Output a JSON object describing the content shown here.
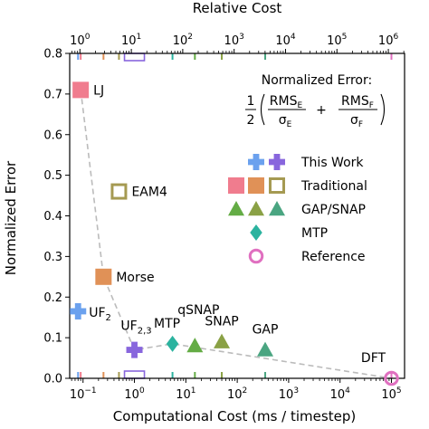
{
  "chart_data": {
    "type": "scatter",
    "xlabel": "Computational Cost (ms / timestep)",
    "ylabel": "Normalized Error",
    "top_xlabel": "Relative Cost",
    "xscale": "log",
    "xlim": [
      0.055,
      180000
    ],
    "ylim": [
      0,
      0.8
    ],
    "relative_cost_reference": 0.087,
    "x_ticks": [
      {
        "value": 0.1,
        "base": "10",
        "exp": "−1"
      },
      {
        "value": 1,
        "base": "10",
        "exp": "0"
      },
      {
        "value": 10,
        "base": "10",
        "exp": "1"
      },
      {
        "value": 100,
        "base": "10",
        "exp": "2"
      },
      {
        "value": 1000,
        "base": "10",
        "exp": "3"
      },
      {
        "value": 10000,
        "base": "10",
        "exp": "4"
      },
      {
        "value": 100000,
        "base": "10",
        "exp": "5"
      }
    ],
    "top_ticks": [
      {
        "value": 1,
        "base": "10",
        "exp": "0"
      },
      {
        "value": 10,
        "base": "10",
        "exp": "1"
      },
      {
        "value": 100,
        "base": "10",
        "exp": "2"
      },
      {
        "value": 1000,
        "base": "10",
        "exp": "3"
      },
      {
        "value": 10000,
        "base": "10",
        "exp": "4"
      },
      {
        "value": 100000,
        "base": "10",
        "exp": "5"
      },
      {
        "value": 1000000,
        "base": "10",
        "exp": "6"
      }
    ],
    "y_ticks": [
      "0.0",
      "0.1",
      "0.2",
      "0.3",
      "0.4",
      "0.5",
      "0.6",
      "0.7",
      "0.8"
    ],
    "pareto_front": [
      {
        "x": 0.09,
        "y": 0.71
      },
      {
        "x": 0.25,
        "y": 0.25
      },
      {
        "x": 1.0,
        "y": 0.07
      },
      {
        "x": 5.5,
        "y": 0.085
      },
      {
        "x": 100000,
        "y": 0.0
      }
    ],
    "points": [
      {
        "label": "LJ",
        "sub": "",
        "x": 0.09,
        "y": 0.71,
        "marker": "square",
        "color": "#f07c8e",
        "filled": true
      },
      {
        "label": "EAM4",
        "sub": "",
        "x": 0.5,
        "y": 0.46,
        "marker": "square",
        "color": "#a59a52",
        "filled": false
      },
      {
        "label": "Morse",
        "sub": "",
        "x": 0.25,
        "y": 0.25,
        "marker": "square",
        "color": "#e09157",
        "filled": true
      },
      {
        "label": "UF",
        "sub": "2",
        "x": 0.08,
        "y": 0.165,
        "marker": "plus",
        "color": "#6ba1ee",
        "filled": true
      },
      {
        "label": "UF",
        "sub": "2,3",
        "x": 1.0,
        "y": 0.07,
        "marker": "plus",
        "color": "#8866dd",
        "filled": true
      },
      {
        "label": "MTP",
        "sub": "",
        "x": 5.5,
        "y": 0.085,
        "marker": "diamond",
        "color": "#2bb39f",
        "filled": true
      },
      {
        "label": "qSNAP",
        "sub": "",
        "x": 15,
        "y": 0.08,
        "marker": "triangle",
        "color": "#64ac45",
        "filled": true
      },
      {
        "label": "SNAP",
        "sub": "",
        "x": 50,
        "y": 0.09,
        "marker": "triangle",
        "color": "#8aa145",
        "filled": true
      },
      {
        "label": "GAP",
        "sub": "",
        "x": 350,
        "y": 0.07,
        "marker": "triangle",
        "color": "#4aa581",
        "filled": true
      },
      {
        "label": "DFT",
        "sub": "",
        "x": 100000,
        "y": 0.0,
        "marker": "circle",
        "color": "#e070c0",
        "filled": false
      }
    ],
    "rug_marks": [
      {
        "x": 0.08,
        "color": "#6ba1ee"
      },
      {
        "x": 0.09,
        "color": "#f07c8e"
      },
      {
        "x": 0.25,
        "color": "#e09157"
      },
      {
        "x": 0.5,
        "color": "#a59a52"
      },
      {
        "x": 5.5,
        "color": "#2bb39f"
      },
      {
        "x": 15,
        "color": "#64ac45"
      },
      {
        "x": 50,
        "color": "#8aa145"
      },
      {
        "x": 350,
        "color": "#4aa581"
      },
      {
        "x": 100000,
        "color": "#e070c0"
      }
    ],
    "rug_boxes": [
      {
        "x": 1.0,
        "color": "#8866dd"
      }
    ],
    "legend": {
      "placement": "right",
      "title": "Normalized Error:",
      "formula": {
        "one": "1",
        "two": "2",
        "rmse": "RMS",
        "rmse_sub": "E",
        "sigma_e": "σ",
        "sigma_e_sub": "E",
        "plus": "+",
        "rmsf": "RMS",
        "rmsf_sub": "F",
        "sigma_f": "σ",
        "sigma_f_sub": "F"
      },
      "entries": [
        {
          "label": "This Work",
          "markers": [
            {
              "shape": "plus",
              "color": "#6ba1ee"
            },
            {
              "shape": "plus",
              "color": "#8866dd"
            }
          ]
        },
        {
          "label": "Traditional",
          "markers": [
            {
              "shape": "square",
              "color": "#f07c8e"
            },
            {
              "shape": "square",
              "color": "#e09157"
            },
            {
              "shape": "square-open",
              "color": "#a59a52"
            }
          ]
        },
        {
          "label": "GAP/SNAP",
          "markers": [
            {
              "shape": "triangle",
              "color": "#64ac45"
            },
            {
              "shape": "triangle",
              "color": "#8aa145"
            },
            {
              "shape": "triangle",
              "color": "#4aa581"
            }
          ]
        },
        {
          "label": "MTP",
          "markers": [
            {
              "shape": "diamond",
              "color": "#2bb39f"
            }
          ]
        },
        {
          "label": "Reference",
          "markers": [
            {
              "shape": "circle-open",
              "color": "#e070c0"
            }
          ]
        }
      ]
    },
    "grid": false
  }
}
